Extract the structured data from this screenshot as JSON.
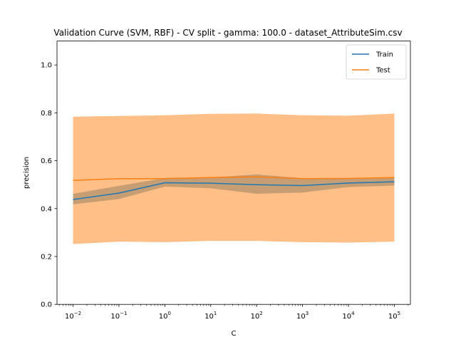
{
  "chart_data": {
    "type": "line",
    "title": "Validation Curve (SVM, RBF) - CV split - gamma: 100.0 - dataset_AttributeSim.csv",
    "xlabel": "C",
    "ylabel": "precision",
    "xscale": "log",
    "x": [
      0.01,
      0.1,
      1,
      10,
      100,
      1000,
      10000,
      100000
    ],
    "x_tick_labels": [
      {
        "base": "10",
        "exp": "−2"
      },
      {
        "base": "10",
        "exp": "−1"
      },
      {
        "base": "10",
        "exp": "0"
      },
      {
        "base": "10",
        "exp": "1"
      },
      {
        "base": "10",
        "exp": "2"
      },
      {
        "base": "10",
        "exp": "3"
      },
      {
        "base": "10",
        "exp": "4"
      },
      {
        "base": "10",
        "exp": "5"
      }
    ],
    "ylim": [
      0.0,
      1.1
    ],
    "y_ticks": [
      "0.0",
      "0.2",
      "0.4",
      "0.6",
      "0.8",
      "1.0"
    ],
    "grid": false,
    "legend_position": "top-right",
    "series": [
      {
        "name": "Train",
        "color": "#1f77b4",
        "band_color": "#1f77b4",
        "values": [
          0.438,
          0.465,
          0.508,
          0.506,
          0.5,
          0.496,
          0.507,
          0.512
        ],
        "band_lower": [
          0.418,
          0.44,
          0.492,
          0.485,
          0.462,
          0.467,
          0.49,
          0.496
        ],
        "band_upper": [
          0.462,
          0.495,
          0.528,
          0.53,
          0.543,
          0.527,
          0.527,
          0.53
        ]
      },
      {
        "name": "Test",
        "color": "#ff7f0e",
        "band_color": "#ff7f0e",
        "values": [
          0.518,
          0.525,
          0.525,
          0.53,
          0.533,
          0.525,
          0.526,
          0.53
        ],
        "band_lower": [
          0.252,
          0.262,
          0.26,
          0.265,
          0.265,
          0.26,
          0.258,
          0.262
        ],
        "band_upper": [
          0.784,
          0.787,
          0.79,
          0.796,
          0.797,
          0.79,
          0.788,
          0.797
        ]
      }
    ]
  }
}
